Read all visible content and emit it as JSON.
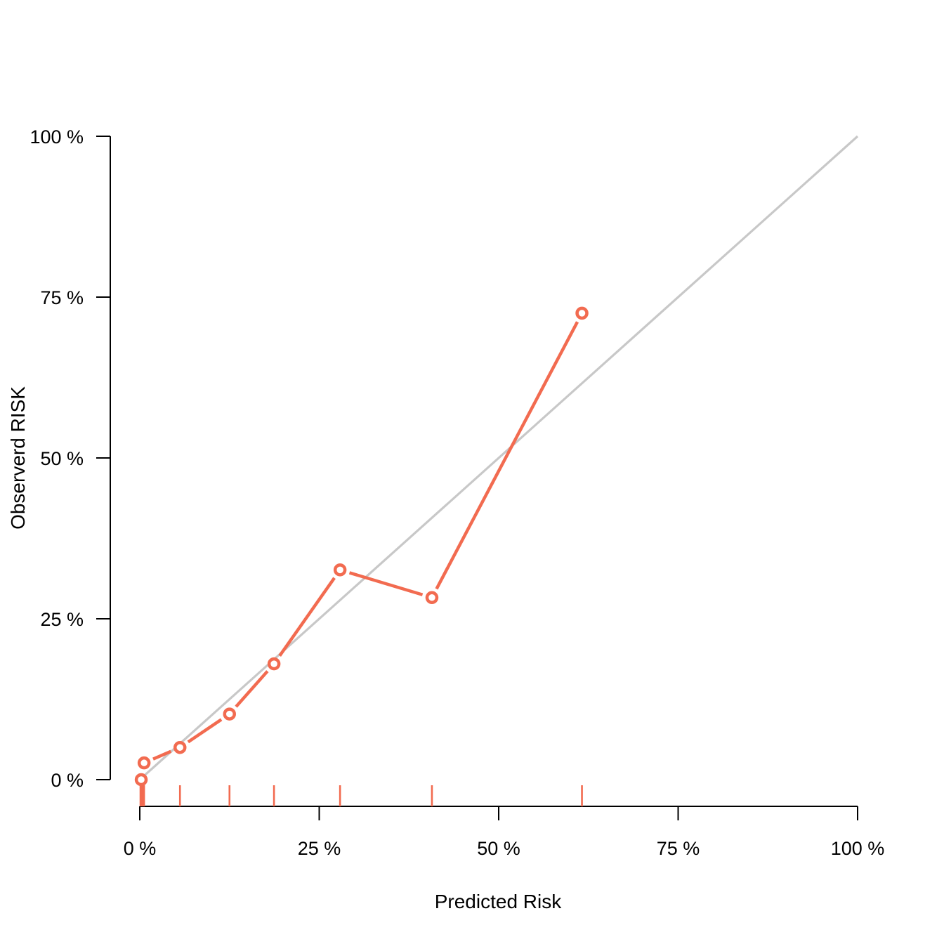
{
  "chart_data": {
    "type": "line",
    "xlabel": "Predicted Risk",
    "ylabel": "Observerd RISK",
    "xlim": [
      0,
      100
    ],
    "ylim": [
      0,
      100
    ],
    "x_ticks": [
      0,
      25,
      50,
      75,
      100
    ],
    "y_ticks": [
      0,
      25,
      50,
      75,
      100
    ],
    "x_tick_labels": [
      "0 %",
      "25 %",
      "50 %",
      "75 %",
      "100 %"
    ],
    "y_tick_labels": [
      "0 %",
      "25 %",
      "50 %",
      "75 %",
      "100 %"
    ],
    "grid": false,
    "legend": "none",
    "reference_line": {
      "x": [
        0,
        100
      ],
      "y": [
        0,
        100
      ],
      "color": "#c8c8c8"
    },
    "series": [
      {
        "color": "#f26b50",
        "x": [
          0.2,
          0.6,
          5.6,
          12.5,
          18.7,
          27.9,
          40.7,
          61.6
        ],
        "y": [
          0.0,
          2.6,
          5.0,
          10.2,
          18.0,
          32.6,
          28.3,
          72.5
        ]
      }
    ],
    "rug": {
      "color": "#f26b50",
      "x": [
        0.1,
        0.2,
        0.3,
        0.4,
        0.5,
        0.6,
        5.6,
        12.5,
        18.7,
        27.9,
        40.7,
        61.6
      ]
    }
  }
}
